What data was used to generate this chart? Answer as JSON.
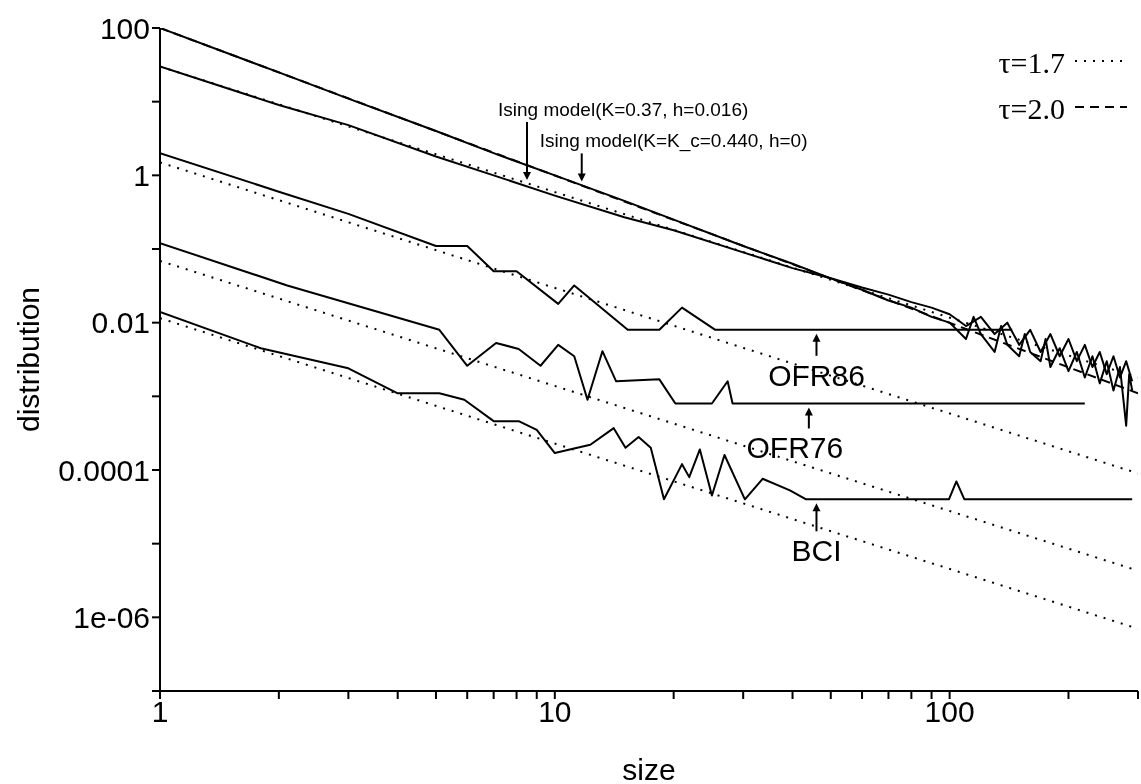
{
  "chart_data": {
    "type": "line",
    "xlabel": "size",
    "ylabel": "distribution",
    "log": "xy",
    "legend": "top right",
    "xlim": [
      1,
      300
    ],
    "ylim": [
      1e-07,
      100
    ],
    "xticks": [
      1,
      {
        "value": 2,
        "label": null
      },
      {
        "value": 3,
        "label": null
      },
      {
        "value": 4,
        "label": null
      },
      {
        "value": 5,
        "label": null
      },
      {
        "value": 6,
        "label": null
      },
      {
        "value": 7,
        "label": null
      },
      {
        "value": 8,
        "label": null
      },
      {
        "value": 9,
        "label": null
      },
      10,
      {
        "value": 20,
        "label": null
      },
      {
        "value": 30,
        "label": null
      },
      {
        "value": 40,
        "label": null
      },
      {
        "value": 50,
        "label": null
      },
      {
        "value": 60,
        "label": null
      },
      {
        "value": 70,
        "label": null
      },
      {
        "value": 80,
        "label": null
      },
      {
        "value": 90,
        "label": null
      },
      100,
      {
        "value": 200,
        "label": null
      },
      {
        "value": 300,
        "label": null
      }
    ],
    "yticks": [
      {
        "value": 1e-07,
        "label": null
      },
      {
        "value": 1e-06,
        "label": "1e-06"
      },
      {
        "value": 1e-05,
        "label": null
      },
      {
        "value": 0.0001,
        "label": "0.0001"
      },
      {
        "value": 0.001,
        "label": null
      },
      0.01,
      {
        "value": 0.1,
        "label": null
      },
      1,
      {
        "value": 10,
        "label": null
      },
      100
    ],
    "series": [
      {
        "color": "#000000",
        "x": [
          1,
          2,
          3,
          5,
          7,
          10,
          15,
          20,
          30,
          40,
          50,
          60,
          70,
          80,
          90,
          100,
          110,
          115,
          120,
          130,
          135,
          140,
          150,
          155,
          160,
          170,
          175,
          180,
          190,
          200,
          210,
          220,
          230,
          240,
          250,
          260,
          270,
          280,
          285,
          290
        ],
        "values": [
          100,
          25,
          11,
          4,
          2,
          1,
          0.45,
          0.25,
          0.11,
          0.063,
          0.04,
          0.028,
          0.02,
          0.016,
          0.012,
          0.01,
          0.006,
          0.012,
          0.007,
          0.004,
          0.009,
          0.005,
          0.0035,
          0.007,
          0.004,
          0.003,
          0.006,
          0.0025,
          0.0045,
          0.0022,
          0.004,
          0.0018,
          0.0035,
          0.0015,
          0.003,
          0.0012,
          0.0025,
          0.0004,
          0.002,
          0.0012
        ]
      },
      {
        "color": "#000000",
        "x": [
          1,
          2,
          3,
          5,
          7,
          10,
          15,
          20,
          30,
          40,
          50,
          60,
          70,
          80,
          90,
          100,
          110,
          120,
          130,
          140,
          150,
          160,
          170,
          180,
          190,
          200,
          210,
          220,
          230,
          240,
          250,
          260,
          270,
          280,
          290
        ],
        "values": [
          30,
          9,
          4.8,
          1.8,
          1.0,
          0.53,
          0.27,
          0.18,
          0.09,
          0.055,
          0.04,
          0.03,
          0.024,
          0.019,
          0.016,
          0.013,
          0.009,
          0.012,
          0.007,
          0.01,
          0.005,
          0.008,
          0.004,
          0.007,
          0.0035,
          0.006,
          0.003,
          0.005,
          0.0025,
          0.004,
          0.002,
          0.0035,
          0.0018,
          0.003,
          0.0016
        ]
      },
      {
        "color": "#000000",
        "x": [
          1,
          2,
          3,
          5,
          6,
          7,
          8,
          10.2,
          11.2,
          15.3,
          18.4,
          21,
          25.5,
          144
        ],
        "values": [
          2,
          0.6,
          0.3,
          0.11,
          0.11,
          0.05,
          0.05,
          0.018,
          0.032,
          0.008,
          0.008,
          0.016,
          0.008,
          0.008
        ]
      },
      {
        "color": "#000000",
        "x": [
          1,
          2.1,
          5.1,
          6,
          7.1,
          8.1,
          9.2,
          10.2,
          11.2,
          12.1,
          13.2,
          14.3,
          18.4,
          20.2,
          25,
          27.4,
          28.2,
          220
        ],
        "values": [
          0.12,
          0.032,
          0.008,
          0.0026,
          0.0053,
          0.0044,
          0.0026,
          0.005,
          0.0035,
          0.0009,
          0.0041,
          0.0016,
          0.0017,
          0.0008,
          0.0008,
          0.0016,
          0.0008,
          0.0008
        ]
      },
      {
        "color": "#000000",
        "x": [
          1,
          1.8,
          3,
          4,
          5.1,
          5.9,
          7,
          8.1,
          9,
          10,
          11.4,
          12.3,
          14.1,
          15.1,
          16.3,
          17.5,
          18.9,
          21,
          21.9,
          23.3,
          25,
          26.9,
          30.3,
          33.6,
          39.4,
          43.3,
          99.6,
          104,
          109,
          290
        ],
        "values": [
          0.014,
          0.0045,
          0.0024,
          0.0011,
          0.0011,
          0.0009,
          0.00046,
          0.00046,
          0.00035,
          0.00017,
          0.0002,
          0.00022,
          0.00037,
          0.0002,
          0.00028,
          0.0002,
          4e-05,
          0.00012,
          8e-05,
          0.00019,
          4.5e-05,
          0.00016,
          4e-05,
          7.6e-05,
          5.3e-05,
          4e-05,
          4e-05,
          7e-05,
          4e-05,
          4e-05
        ]
      },
      {
        "name": "τ=1.7",
        "color": "#000000",
        "line_style": "dotted",
        "x": [
          1,
          300
        ],
        "values": [
          30,
          0.0018
        ]
      },
      {
        "name": "τ=2.0",
        "color": "#000000",
        "line_style": "dashed",
        "x": [
          1,
          300
        ],
        "values": [
          100,
          0.0011
        ]
      },
      {
        "color": "#000000",
        "line_style": "dotted",
        "x": [
          1,
          300
        ],
        "values": [
          1.5,
          9e-05
        ]
      },
      {
        "color": "#000000",
        "line_style": "dotted",
        "x": [
          1,
          300
        ],
        "values": [
          0.069,
          4.3e-06
        ]
      },
      {
        "color": "#000000",
        "line_style": "dotted",
        "x": [
          1,
          300
        ],
        "values": [
          0.0115,
          7e-07
        ]
      }
    ],
    "annotations": [
      "Ising model(K=0.37, h=0.016)",
      {
        "text": "Ising model(K=K_c=0.440, h=0)",
        "x": 11.7,
        "y": 0.73
      },
      {
        "text": "OFR86",
        "x": 46,
        "y": 0.008
      },
      {
        "text": "OFR76",
        "x": 44,
        "y": 0.0008
      },
      {
        "text": "BCI",
        "x": 46,
        "y": 4e-05
      }
    ]
  }
}
